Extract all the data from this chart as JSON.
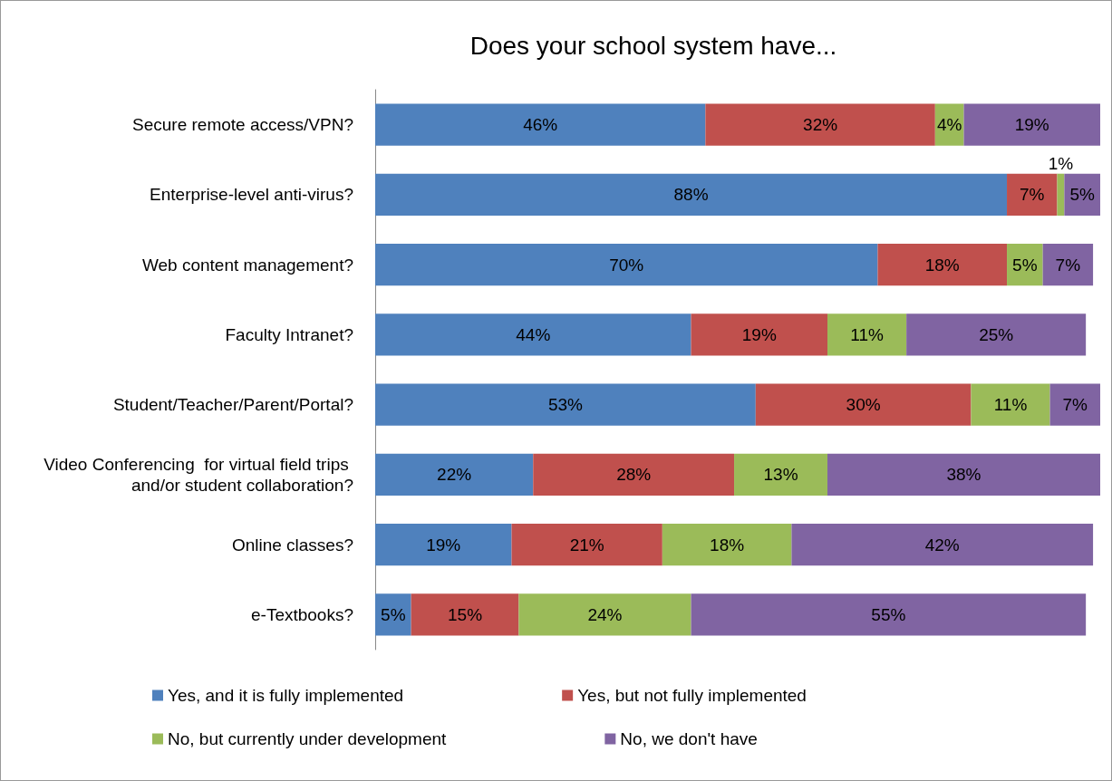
{
  "chart_data": {
    "type": "bar",
    "orientation": "horizontal",
    "stacked": true,
    "title": "Does your school system have...",
    "categories": [
      "Secure remote access/VPN?",
      "Enterprise-level anti-virus?",
      "Web content management?",
      "Faculty Intranet?",
      "Student/Teacher/Parent/Portal?",
      "Video Conferencing  for virtual field trips and/or student collaboration?",
      "Online classes?",
      "e-Textbooks?"
    ],
    "series": [
      {
        "name": "Yes, and it is fully implemented",
        "color": "#4f81bd",
        "values": [
          46,
          88,
          70,
          44,
          53,
          22,
          19,
          5
        ],
        "value_labels": [
          "46%",
          "88%",
          "70%",
          "44%",
          "53%",
          "22%",
          "19%",
          "5%"
        ]
      },
      {
        "name": "Yes, but not fully implemented",
        "color": "#c0504d",
        "values": [
          32,
          7,
          18,
          19,
          30,
          28,
          21,
          15
        ],
        "value_labels": [
          "32%",
          "7%",
          "18%",
          "19%",
          "30%",
          "28%",
          "21%",
          "15%"
        ]
      },
      {
        "name": "No, but currently under development",
        "color": "#9bbb59",
        "values": [
          4,
          1,
          5,
          11,
          11,
          13,
          18,
          24
        ],
        "value_labels": [
          "4%",
          "1%",
          "5%",
          "11%",
          "11%",
          "13%",
          "18%",
          "24%"
        ]
      },
      {
        "name": "No, we don't have",
        "color": "#8064a2",
        "values": [
          19,
          5,
          7,
          25,
          7,
          38,
          42,
          55
        ],
        "value_labels": [
          "19%",
          "5%",
          "7%",
          "25%",
          "7%",
          "38%",
          "42%",
          "55%"
        ]
      }
    ],
    "legend": "bottom",
    "grid": false
  }
}
